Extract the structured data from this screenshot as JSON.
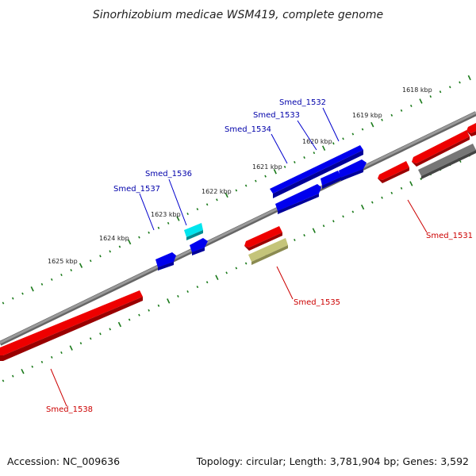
{
  "title": "Sinorhizobium medicae WSM419, complete genome",
  "footer": {
    "accession": "Accession: NC_009636",
    "summary": "Topology: circular; Length: 3,781,904 bp; Genes: 3,592"
  },
  "colors": {
    "blue": "#0000ee",
    "cyan": "#00e5ee",
    "red": "#ee0000",
    "khaki": "#c4c47a",
    "gray": "#777777",
    "backbone": "#8a8a8a",
    "ticks": "#1a7a1a",
    "label_blue": "#0000aa",
    "label_red": "#cc0000"
  },
  "kbp_ticks": [
    "1618 kbp",
    "1619 kbp",
    "1620 kbp",
    "1621 kbp",
    "1622 kbp",
    "1623 kbp",
    "1624 kbp",
    "1625 kbp"
  ],
  "gene_labels": {
    "smed_1532": "Smed_1532",
    "smed_1533": "Smed_1533",
    "smed_1534": "Smed_1534",
    "smed_1536": "Smed_1536",
    "smed_1537": "Smed_1537",
    "smed_1531": "Smed_1531",
    "smed_1535": "Smed_1535",
    "smed_1538": "Smed_1538"
  }
}
